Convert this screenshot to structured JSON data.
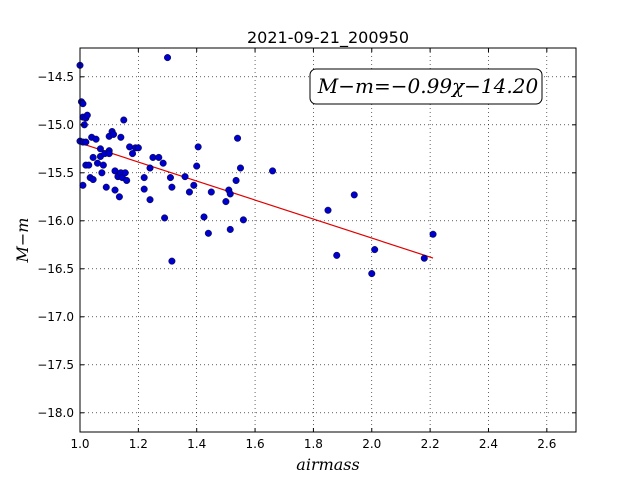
{
  "chart_data": {
    "type": "scatter",
    "title": "2021-09-21_200950",
    "xlabel": "airmass",
    "ylabel": "M−m",
    "xlim": [
      1.0,
      2.7
    ],
    "ylim": [
      -18.2,
      -14.2
    ],
    "y_inverted": true,
    "grid": true,
    "xticks": [
      "1.0",
      "1.2",
      "1.4",
      "1.6",
      "1.8",
      "2.0",
      "2.2",
      "2.4",
      "2.6"
    ],
    "yticks": [
      "−14.5",
      "−15.0",
      "−15.5",
      "−16.0",
      "−16.5",
      "−17.0",
      "−17.5",
      "−18.0"
    ],
    "annotation": "M−m=−0.99χ−14.20",
    "fit": {
      "slope": -0.99,
      "intercept": -14.2,
      "x_range": [
        1.0,
        2.21
      ],
      "color": "#e00000"
    },
    "point_color": "#0000cc",
    "points": [
      [
        1.0,
        -14.38
      ],
      [
        1.005,
        -14.76
      ],
      [
        1.01,
        -14.78
      ],
      [
        1.01,
        -14.92
      ],
      [
        1.015,
        -15.0
      ],
      [
        1.02,
        -14.93
      ],
      [
        1.025,
        -14.9
      ],
      [
        1.0,
        -15.17
      ],
      [
        1.01,
        -15.18
      ],
      [
        1.02,
        -15.18
      ],
      [
        1.04,
        -15.13
      ],
      [
        1.055,
        -15.15
      ],
      [
        1.01,
        -15.63
      ],
      [
        1.02,
        -15.42
      ],
      [
        1.03,
        -15.42
      ],
      [
        1.035,
        -15.55
      ],
      [
        1.045,
        -15.57
      ],
      [
        1.045,
        -15.34
      ],
      [
        1.06,
        -15.4
      ],
      [
        1.07,
        -15.25
      ],
      [
        1.07,
        -15.33
      ],
      [
        1.075,
        -15.5
      ],
      [
        1.08,
        -15.42
      ],
      [
        1.085,
        -15.3
      ],
      [
        1.09,
        -15.65
      ],
      [
        1.1,
        -15.27
      ],
      [
        1.1,
        -15.3
      ],
      [
        1.1,
        -15.12
      ],
      [
        1.11,
        -15.07
      ],
      [
        1.115,
        -15.1
      ],
      [
        1.12,
        -15.48
      ],
      [
        1.12,
        -15.68
      ],
      [
        1.13,
        -15.54
      ],
      [
        1.135,
        -15.75
      ],
      [
        1.14,
        -15.5
      ],
      [
        1.14,
        -15.13
      ],
      [
        1.145,
        -15.55
      ],
      [
        1.15,
        -14.95
      ],
      [
        1.155,
        -15.5
      ],
      [
        1.16,
        -15.58
      ],
      [
        1.17,
        -15.23
      ],
      [
        1.18,
        -15.3
      ],
      [
        1.19,
        -15.24
      ],
      [
        1.2,
        -15.24
      ],
      [
        1.22,
        -15.55
      ],
      [
        1.22,
        -15.67
      ],
      [
        1.24,
        -15.78
      ],
      [
        1.24,
        -15.45
      ],
      [
        1.25,
        -15.34
      ],
      [
        1.27,
        -15.34
      ],
      [
        1.285,
        -15.4
      ],
      [
        1.29,
        -15.97
      ],
      [
        1.3,
        -14.3
      ],
      [
        1.31,
        -15.55
      ],
      [
        1.315,
        -15.65
      ],
      [
        1.315,
        -16.42
      ],
      [
        1.36,
        -15.54
      ],
      [
        1.375,
        -15.7
      ],
      [
        1.39,
        -15.63
      ],
      [
        1.4,
        -15.43
      ],
      [
        1.405,
        -15.23
      ],
      [
        1.425,
        -15.96
      ],
      [
        1.44,
        -16.13
      ],
      [
        1.45,
        -15.7
      ],
      [
        1.5,
        -15.8
      ],
      [
        1.51,
        -15.68
      ],
      [
        1.515,
        -15.72
      ],
      [
        1.515,
        -16.09
      ],
      [
        1.535,
        -15.58
      ],
      [
        1.54,
        -15.14
      ],
      [
        1.55,
        -15.45
      ],
      [
        1.56,
        -15.99
      ],
      [
        1.66,
        -15.48
      ],
      [
        1.85,
        -15.89
      ],
      [
        1.88,
        -16.36
      ],
      [
        1.94,
        -15.73
      ],
      [
        2.0,
        -16.55
      ],
      [
        2.01,
        -16.3
      ],
      [
        2.18,
        -16.39
      ],
      [
        2.21,
        -16.14
      ]
    ]
  }
}
